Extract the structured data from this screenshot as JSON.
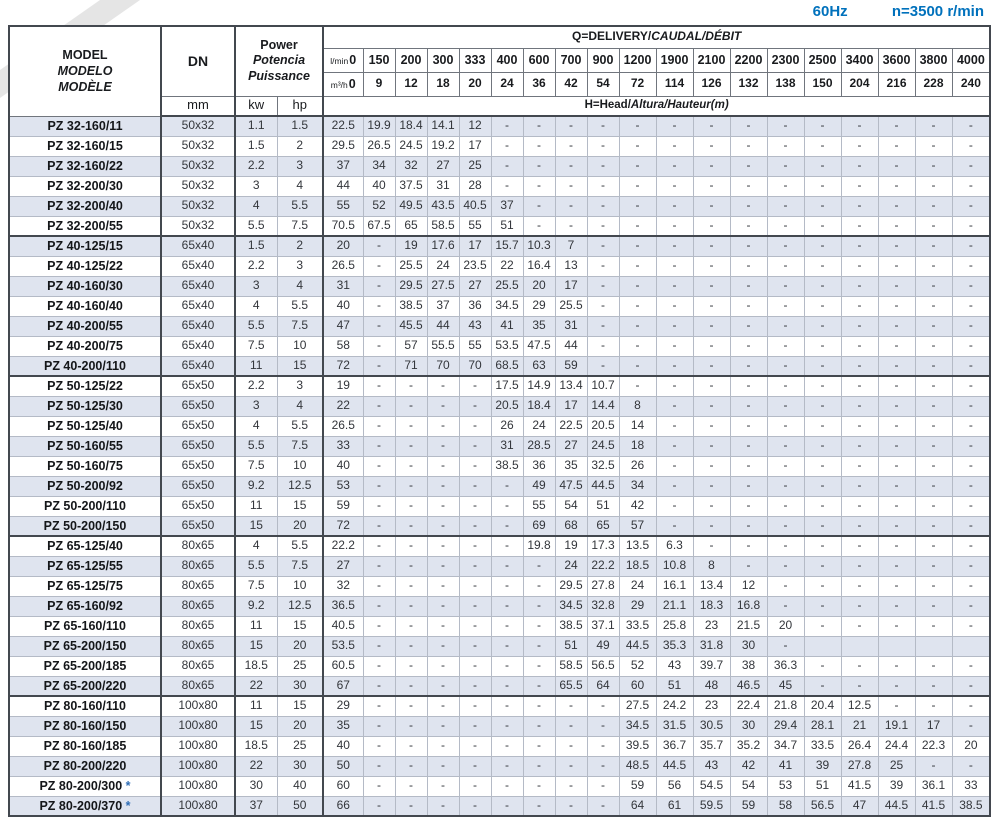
{
  "page": {
    "frequency": "60Hz",
    "speed": "n=3500 r/min"
  },
  "table": {
    "header": {
      "model_lines": [
        "MODEL",
        "MODELO",
        "MODÈLE"
      ],
      "dn_label": "DN",
      "dn_unit": "mm",
      "power_lines": [
        "Power",
        "Potencia",
        "Puissance"
      ],
      "kw": "kw",
      "hp": "hp",
      "q_title_plain": "Q=DELIVERY/",
      "q_title_italic": "CAUDAL/DÉBIT",
      "h_title_plain": "H=Head/",
      "h_title_italic": "Altura/Hauteur(m)",
      "lmin_label": "l/min",
      "m3h_label": "m³/h",
      "lmin": [
        "0",
        "150",
        "200",
        "300",
        "333",
        "400",
        "600",
        "700",
        "900",
        "1200",
        "1900",
        "2100",
        "2200",
        "2300",
        "2500",
        "3400",
        "3600",
        "3800",
        "4000"
      ],
      "m3h": [
        "0",
        "9",
        "12",
        "18",
        "20",
        "24",
        "36",
        "42",
        "54",
        "72",
        "114",
        "126",
        "132",
        "138",
        "150",
        "204",
        "216",
        "228",
        "240"
      ]
    },
    "rows": [
      {
        "model": "PZ 32-160/11",
        "dn": "50x32",
        "kw": "1.1",
        "hp": "1.5",
        "h": [
          "22.5",
          "19.9",
          "18.4",
          "14.1",
          "12",
          "-",
          "-",
          "-",
          "-",
          "-",
          "-",
          "-",
          "-",
          "-",
          "-",
          "-",
          "-",
          "-",
          "-"
        ]
      },
      {
        "model": "PZ 32-160/15",
        "dn": "50x32",
        "kw": "1.5",
        "hp": "2",
        "h": [
          "29.5",
          "26.5",
          "24.5",
          "19.2",
          "17",
          "-",
          "-",
          "-",
          "-",
          "-",
          "-",
          "-",
          "-",
          "-",
          "-",
          "-",
          "-",
          "-",
          "-"
        ]
      },
      {
        "model": "PZ 32-160/22",
        "dn": "50x32",
        "kw": "2.2",
        "hp": "3",
        "h": [
          "37",
          "34",
          "32",
          "27",
          "25",
          "-",
          "-",
          "-",
          "-",
          "-",
          "-",
          "-",
          "-",
          "-",
          "-",
          "-",
          "-",
          "-",
          "-"
        ]
      },
      {
        "model": "PZ 32-200/30",
        "dn": "50x32",
        "kw": "3",
        "hp": "4",
        "h": [
          "44",
          "40",
          "37.5",
          "31",
          "28",
          "-",
          "-",
          "-",
          "-",
          "-",
          "-",
          "-",
          "-",
          "-",
          "-",
          "-",
          "-",
          "-",
          "-"
        ]
      },
      {
        "model": "PZ 32-200/40",
        "dn": "50x32",
        "kw": "4",
        "hp": "5.5",
        "h": [
          "55",
          "52",
          "49.5",
          "43.5",
          "40.5",
          "37",
          "-",
          "-",
          "-",
          "-",
          "-",
          "-",
          "-",
          "-",
          "-",
          "-",
          "-",
          "-",
          "-"
        ]
      },
      {
        "model": "PZ 32-200/55",
        "dn": "50x32",
        "kw": "5.5",
        "hp": "7.5",
        "h": [
          "70.5",
          "67.5",
          "65",
          "58.5",
          "55",
          "51",
          "-",
          "-",
          "-",
          "-",
          "-",
          "-",
          "-",
          "-",
          "-",
          "-",
          "-",
          "-",
          "-"
        ]
      },
      {
        "model": "PZ 40-125/15",
        "group": true,
        "dn": "65x40",
        "kw": "1.5",
        "hp": "2",
        "h": [
          "20",
          "-",
          "19",
          "17.6",
          "17",
          "15.7",
          "10.3",
          "7",
          "-",
          "-",
          "-",
          "-",
          "-",
          "-",
          "-",
          "-",
          "-",
          "-",
          "-"
        ]
      },
      {
        "model": "PZ 40-125/22",
        "dn": "65x40",
        "kw": "2.2",
        "hp": "3",
        "h": [
          "26.5",
          "-",
          "25.5",
          "24",
          "23.5",
          "22",
          "16.4",
          "13",
          "-",
          "-",
          "-",
          "-",
          "-",
          "-",
          "-",
          "-",
          "-",
          "-",
          "-"
        ]
      },
      {
        "model": "PZ 40-160/30",
        "dn": "65x40",
        "kw": "3",
        "hp": "4",
        "h": [
          "31",
          "-",
          "29.5",
          "27.5",
          "27",
          "25.5",
          "20",
          "17",
          "-",
          "-",
          "-",
          "-",
          "-",
          "-",
          "-",
          "-",
          "-",
          "-",
          "-"
        ]
      },
      {
        "model": "PZ 40-160/40",
        "dn": "65x40",
        "kw": "4",
        "hp": "5.5",
        "h": [
          "40",
          "-",
          "38.5",
          "37",
          "36",
          "34.5",
          "29",
          "25.5",
          "-",
          "-",
          "-",
          "-",
          "-",
          "-",
          "-",
          "-",
          "-",
          "-",
          "-"
        ]
      },
      {
        "model": "PZ 40-200/55",
        "dn": "65x40",
        "kw": "5.5",
        "hp": "7.5",
        "h": [
          "47",
          "-",
          "45.5",
          "44",
          "43",
          "41",
          "35",
          "31",
          "-",
          "-",
          "-",
          "-",
          "-",
          "-",
          "-",
          "-",
          "-",
          "-",
          "-"
        ]
      },
      {
        "model": "PZ 40-200/75",
        "dn": "65x40",
        "kw": "7.5",
        "hp": "10",
        "h": [
          "58",
          "-",
          "57",
          "55.5",
          "55",
          "53.5",
          "47.5",
          "44",
          "-",
          "-",
          "-",
          "-",
          "-",
          "-",
          "-",
          "-",
          "-",
          "-",
          "-"
        ]
      },
      {
        "model": "PZ 40-200/110",
        "dn": "65x40",
        "kw": "11",
        "hp": "15",
        "h": [
          "72",
          "-",
          "71",
          "70",
          "70",
          "68.5",
          "63",
          "59",
          "-",
          "-",
          "-",
          "-",
          "-",
          "-",
          "-",
          "-",
          "-",
          "-",
          "-"
        ]
      },
      {
        "model": "PZ 50-125/22",
        "group": true,
        "dn": "65x50",
        "kw": "2.2",
        "hp": "3",
        "h": [
          "19",
          "-",
          "-",
          "-",
          "-",
          "17.5",
          "14.9",
          "13.4",
          "10.7",
          "-",
          "-",
          "-",
          "-",
          "-",
          "-",
          "-",
          "-",
          "-",
          "-"
        ]
      },
      {
        "model": "PZ 50-125/30",
        "dn": "65x50",
        "kw": "3",
        "hp": "4",
        "h": [
          "22",
          "-",
          "-",
          "-",
          "-",
          "20.5",
          "18.4",
          "17",
          "14.4",
          "8",
          "-",
          "-",
          "-",
          "-",
          "-",
          "-",
          "-",
          "-",
          "-"
        ]
      },
      {
        "model": "PZ 50-125/40",
        "dn": "65x50",
        "kw": "4",
        "hp": "5.5",
        "h": [
          "26.5",
          "-",
          "-",
          "-",
          "-",
          "26",
          "24",
          "22.5",
          "20.5",
          "14",
          "-",
          "-",
          "-",
          "-",
          "-",
          "-",
          "-",
          "-",
          "-"
        ]
      },
      {
        "model": "PZ 50-160/55",
        "dn": "65x50",
        "kw": "5.5",
        "hp": "7.5",
        "h": [
          "33",
          "-",
          "-",
          "-",
          "-",
          "31",
          "28.5",
          "27",
          "24.5",
          "18",
          "-",
          "-",
          "-",
          "-",
          "-",
          "-",
          "-",
          "-",
          "-"
        ]
      },
      {
        "model": "PZ 50-160/75",
        "dn": "65x50",
        "kw": "7.5",
        "hp": "10",
        "h": [
          "40",
          "-",
          "-",
          "-",
          "-",
          "38.5",
          "36",
          "35",
          "32.5",
          "26",
          "-",
          "-",
          "-",
          "-",
          "-",
          "-",
          "-",
          "-",
          "-"
        ]
      },
      {
        "model": "PZ 50-200/92",
        "dn": "65x50",
        "kw": "9.2",
        "hp": "12.5",
        "h": [
          "53",
          "-",
          "-",
          "-",
          "-",
          "-",
          "49",
          "47.5",
          "44.5",
          "34",
          "-",
          "-",
          "-",
          "-",
          "-",
          "-",
          "-",
          "-",
          "-"
        ]
      },
      {
        "model": "PZ 50-200/110",
        "dn": "65x50",
        "kw": "11",
        "hp": "15",
        "h": [
          "59",
          "-",
          "-",
          "-",
          "-",
          "-",
          "55",
          "54",
          "51",
          "42",
          "-",
          "-",
          "-",
          "-",
          "-",
          "-",
          "-",
          "-",
          "-"
        ]
      },
      {
        "model": "PZ 50-200/150",
        "dn": "65x50",
        "kw": "15",
        "hp": "20",
        "h": [
          "72",
          "-",
          "-",
          "-",
          "-",
          "-",
          "69",
          "68",
          "65",
          "57",
          "-",
          "-",
          "-",
          "-",
          "-",
          "-",
          "-",
          "-",
          "-"
        ]
      },
      {
        "model": "PZ 65-125/40",
        "group": true,
        "dn": "80x65",
        "kw": "4",
        "hp": "5.5",
        "h": [
          "22.2",
          "-",
          "-",
          "-",
          "-",
          "-",
          "19.8",
          "19",
          "17.3",
          "13.5",
          "6.3",
          "-",
          "-",
          "-",
          "-",
          "-",
          "-",
          "-",
          "-"
        ]
      },
      {
        "model": "PZ 65-125/55",
        "dn": "80x65",
        "kw": "5.5",
        "hp": "7.5",
        "h": [
          "27",
          "-",
          "-",
          "-",
          "-",
          "-",
          "-",
          "24",
          "22.2",
          "18.5",
          "10.8",
          "8",
          "-",
          "-",
          "-",
          "-",
          "-",
          "-",
          "-"
        ]
      },
      {
        "model": "PZ 65-125/75",
        "dn": "80x65",
        "kw": "7.5",
        "hp": "10",
        "h": [
          "32",
          "-",
          "-",
          "-",
          "-",
          "-",
          "-",
          "29.5",
          "27.8",
          "24",
          "16.1",
          "13.4",
          "12",
          "-",
          "-",
          "-",
          "-",
          "-",
          "-"
        ]
      },
      {
        "model": "PZ 65-160/92",
        "dn": "80x65",
        "kw": "9.2",
        "hp": "12.5",
        "h": [
          "36.5",
          "-",
          "-",
          "-",
          "-",
          "-",
          "-",
          "34.5",
          "32.8",
          "29",
          "21.1",
          "18.3",
          "16.8",
          "-",
          "-",
          "-",
          "-",
          "-",
          "-"
        ]
      },
      {
        "model": "PZ 65-160/110",
        "dn": "80x65",
        "kw": "11",
        "hp": "15",
        "h": [
          "40.5",
          "-",
          "-",
          "-",
          "-",
          "-",
          "-",
          "38.5",
          "37.1",
          "33.5",
          "25.8",
          "23",
          "21.5",
          "20",
          "-",
          "-",
          "-",
          "-",
          "-"
        ]
      },
      {
        "model": "PZ 65-200/150",
        "dn": "80x65",
        "kw": "15",
        "hp": "20",
        "h": [
          "53.5",
          "-",
          "-",
          "-",
          "-",
          "-",
          "-",
          "51",
          "49",
          "44.5",
          "35.3",
          "31.8",
          "30",
          "-",
          "",
          "",
          "",
          "",
          ""
        ]
      },
      {
        "model": "PZ 65-200/185",
        "dn": "80x65",
        "kw": "18.5",
        "hp": "25",
        "h": [
          "60.5",
          "-",
          "-",
          "-",
          "-",
          "-",
          "-",
          "58.5",
          "56.5",
          "52",
          "43",
          "39.7",
          "38",
          "36.3",
          "-",
          "-",
          "-",
          "-",
          "-"
        ]
      },
      {
        "model": "PZ 65-200/220",
        "dn": "80x65",
        "kw": "22",
        "hp": "30",
        "h": [
          "67",
          "-",
          "-",
          "-",
          "-",
          "-",
          "-",
          "65.5",
          "64",
          "60",
          "51",
          "48",
          "46.5",
          "45",
          "-",
          "-",
          "-",
          "-",
          "-"
        ]
      },
      {
        "model": "PZ 80-160/110",
        "group": true,
        "dn": "100x80",
        "kw": "11",
        "hp": "15",
        "h": [
          "29",
          "-",
          "-",
          "-",
          "-",
          "-",
          "-",
          "-",
          "-",
          "27.5",
          "24.2",
          "23",
          "22.4",
          "21.8",
          "20.4",
          "12.5",
          "-",
          "-",
          "-"
        ]
      },
      {
        "model": "PZ 80-160/150",
        "dn": "100x80",
        "kw": "15",
        "hp": "20",
        "h": [
          "35",
          "-",
          "-",
          "-",
          "-",
          "-",
          "-",
          "-",
          "-",
          "34.5",
          "31.5",
          "30.5",
          "30",
          "29.4",
          "28.1",
          "21",
          "19.1",
          "17",
          "-"
        ]
      },
      {
        "model": "PZ 80-160/185",
        "dn": "100x80",
        "kw": "18.5",
        "hp": "25",
        "h": [
          "40",
          "-",
          "-",
          "-",
          "-",
          "-",
          "-",
          "-",
          "-",
          "39.5",
          "36.7",
          "35.7",
          "35.2",
          "34.7",
          "33.5",
          "26.4",
          "24.4",
          "22.3",
          "20"
        ]
      },
      {
        "model": "PZ 80-200/220",
        "dn": "100x80",
        "kw": "22",
        "hp": "30",
        "h": [
          "50",
          "-",
          "-",
          "-",
          "-",
          "-",
          "-",
          "-",
          "-",
          "48.5",
          "44.5",
          "43",
          "42",
          "41",
          "39",
          "27.8",
          "25",
          "-",
          "-"
        ]
      },
      {
        "model": "PZ 80-200/300",
        "star": "*",
        "dn": "100x80",
        "kw": "30",
        "hp": "40",
        "h": [
          "60",
          "-",
          "-",
          "-",
          "-",
          "-",
          "-",
          "-",
          "-",
          "59",
          "56",
          "54.5",
          "54",
          "53",
          "51",
          "41.5",
          "39",
          "36.1",
          "33"
        ]
      },
      {
        "model": "PZ 80-200/370",
        "star": "*",
        "dn": "100x80",
        "kw": "37",
        "hp": "50",
        "h": [
          "66",
          "-",
          "-",
          "-",
          "-",
          "-",
          "-",
          "-",
          "-",
          "64",
          "61",
          "59.5",
          "59",
          "58",
          "56.5",
          "47",
          "44.5",
          "41.5",
          "38.5"
        ]
      }
    ]
  }
}
